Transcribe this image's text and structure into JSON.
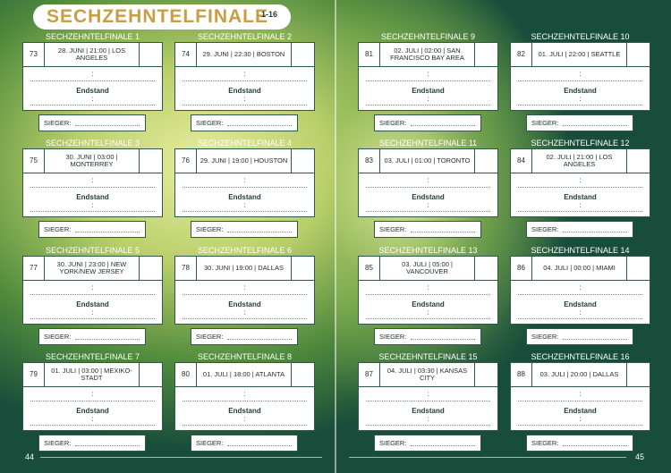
{
  "header": {
    "title": "SECHZEHNTELFINALE",
    "range": "1-16"
  },
  "labels": {
    "endstand": "Endstand",
    "sieger": "SIEGER:",
    "colon": ":"
  },
  "pages": {
    "left": "44",
    "right": "45"
  },
  "matches": [
    {
      "title": "SECHZEHNTELFINALE 1",
      "number": "73",
      "info": "28. JUNI | 21:00 | LOS ANGELES"
    },
    {
      "title": "SECHZEHNTELFINALE 2",
      "number": "74",
      "info": "29. JUNI | 22:30 | BOSTON"
    },
    {
      "title": "SECHZEHNTELFINALE 3",
      "number": "75",
      "info": "30. JUNI | 03:00 | MONTERREY"
    },
    {
      "title": "SECHZEHNTELFINALE 4",
      "number": "76",
      "info": "29. JUNI | 19:00 | HOUSTON"
    },
    {
      "title": "SECHZEHNTELFINALE 5",
      "number": "77",
      "info": "30. JUNI | 23:00 | NEW YORK/NEW JERSEY"
    },
    {
      "title": "SECHZEHNTELFINALE 6",
      "number": "78",
      "info": "30. JUNI | 19:00 | DALLAS"
    },
    {
      "title": "SECHZEHNTELFINALE 7",
      "number": "79",
      "info": "01. JULI | 03:00 | MEXIKO-STADT"
    },
    {
      "title": "SECHZEHNTELFINALE 8",
      "number": "80",
      "info": "01. JULI | 18:00 | ATLANTA"
    },
    {
      "title": "SECHZEHNTELFINALE 9",
      "number": "81",
      "info": "02. JULI | 02:00 | SAN FRANCISCO BAY AREA"
    },
    {
      "title": "SECHZEHNTELFINALE 10",
      "number": "82",
      "info": "01. JULI | 22:00 | SEATTLE"
    },
    {
      "title": "SECHZEHNTELFINALE 11",
      "number": "83",
      "info": "03. JULI | 01:00 | TORONTO"
    },
    {
      "title": "SECHZEHNTELFINALE 12",
      "number": "84",
      "info": "02. JULI | 21:00 | LOS ANGELES"
    },
    {
      "title": "SECHZEHNTELFINALE 13",
      "number": "85",
      "info": "03. JULI | 05:00 | VANCOUVER"
    },
    {
      "title": "SECHZEHNTELFINALE 14",
      "number": "86",
      "info": "04. JULI | 00:00 | MIAMI"
    },
    {
      "title": "SECHZEHNTELFINALE 15",
      "number": "87",
      "info": "04. JULI | 03:30 | KANSAS CITY"
    },
    {
      "title": "SECHZEHNTELFINALE 16",
      "number": "88",
      "info": "03. JULI | 20:00 | DALLAS"
    }
  ]
}
